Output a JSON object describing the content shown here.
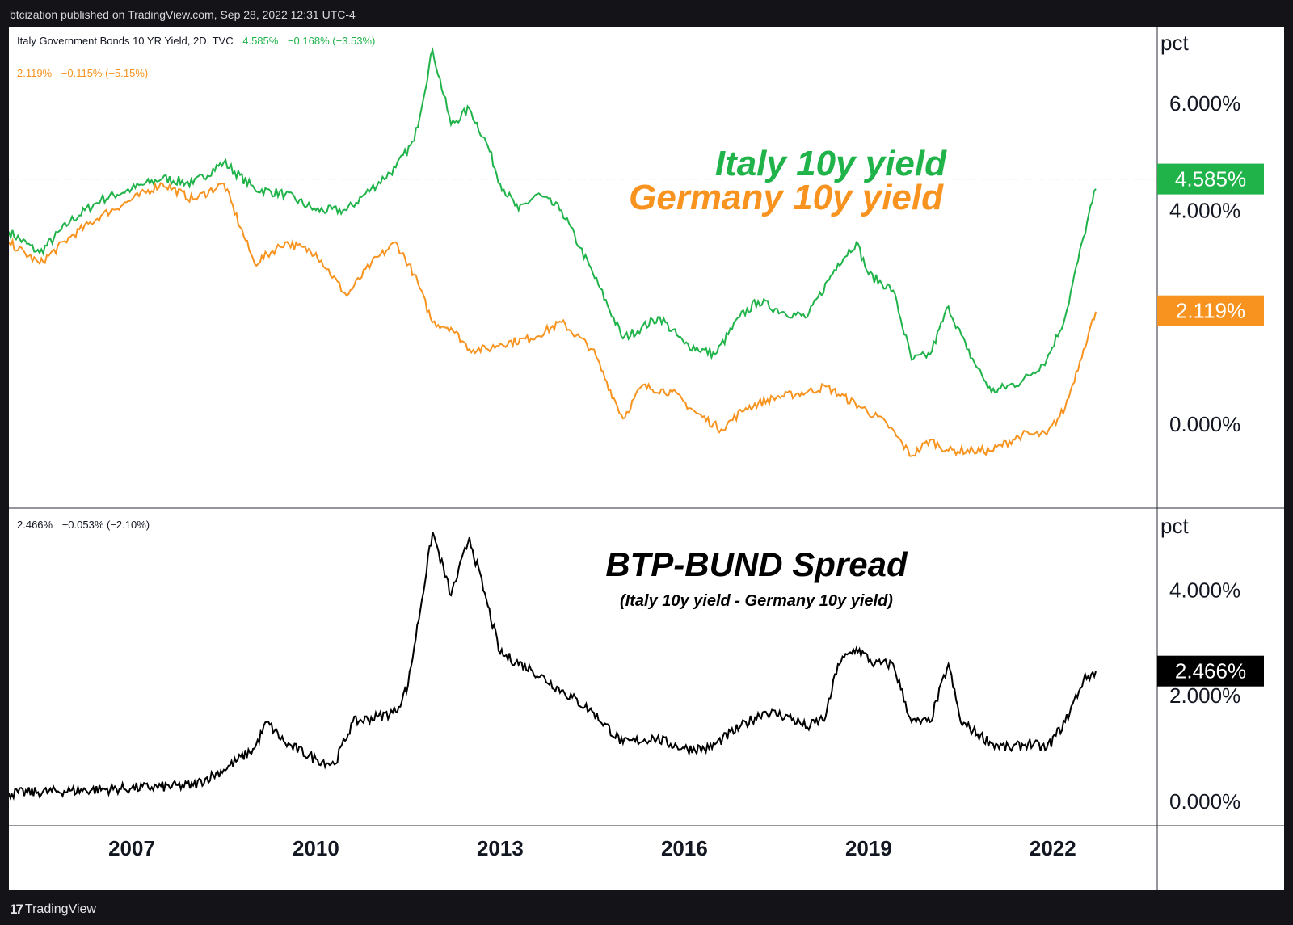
{
  "header": {
    "publisher_text": "btcization published on TradingView.com, Sep 28, 2022 12:31 UTC-4"
  },
  "footer": {
    "brand": "TradingView"
  },
  "colors": {
    "italy": "#1fb34a",
    "germany": "#f7931e",
    "spread": "#000000",
    "background": "#ffffff",
    "frame": "#141418"
  },
  "chart_data": [
    {
      "type": "line",
      "legend": {
        "symbol": "Italy Government Bonds 10 YR Yield, 2D, TVC",
        "italy_value": "4.585%",
        "italy_change": "−0.168% (−3.53%)",
        "germany_value": "2.119%",
        "germany_change": "−0.115% (−5.15%)"
      },
      "annotations": {
        "italy": "Italy 10y yield",
        "germany": "Germany 10y yield"
      },
      "y_unit": "pct",
      "y_ticks": [
        "6.000%",
        "4.000%",
        "0.000%"
      ],
      "y_tick_values": [
        6,
        4,
        0
      ],
      "ylim": [
        -1.5,
        7.3
      ],
      "xlim": [
        2005.0,
        2023.7
      ],
      "price_labels": {
        "italy": "4.585%",
        "germany": "2.119%"
      },
      "last_values": {
        "italy": 4.585,
        "germany": 2.119
      },
      "series": [
        {
          "name": "Italy 10y yield",
          "points": [
            [
              2005.0,
              3.6
            ],
            [
              2005.5,
              3.2
            ],
            [
              2006.0,
              3.8
            ],
            [
              2006.5,
              4.2
            ],
            [
              2007.0,
              4.4
            ],
            [
              2007.5,
              4.6
            ],
            [
              2008.0,
              4.5
            ],
            [
              2008.5,
              4.9
            ],
            [
              2009.0,
              4.4
            ],
            [
              2009.5,
              4.3
            ],
            [
              2010.0,
              4.0
            ],
            [
              2010.5,
              4.0
            ],
            [
              2010.9,
              4.4
            ],
            [
              2011.3,
              4.8
            ],
            [
              2011.6,
              5.3
            ],
            [
              2011.9,
              7.0
            ],
            [
              2012.2,
              5.6
            ],
            [
              2012.5,
              5.9
            ],
            [
              2012.8,
              5.2
            ],
            [
              2013.0,
              4.5
            ],
            [
              2013.3,
              4.0
            ],
            [
              2013.6,
              4.3
            ],
            [
              2014.0,
              4.0
            ],
            [
              2014.3,
              3.3
            ],
            [
              2014.6,
              2.6
            ],
            [
              2015.0,
              1.6
            ],
            [
              2015.3,
              1.8
            ],
            [
              2015.6,
              2.0
            ],
            [
              2016.0,
              1.5
            ],
            [
              2016.5,
              1.3
            ],
            [
              2016.9,
              2.0
            ],
            [
              2017.2,
              2.3
            ],
            [
              2017.6,
              2.1
            ],
            [
              2018.0,
              2.0
            ],
            [
              2018.5,
              3.0
            ],
            [
              2018.8,
              3.4
            ],
            [
              2019.0,
              2.8
            ],
            [
              2019.4,
              2.5
            ],
            [
              2019.7,
              1.2
            ],
            [
              2020.0,
              1.3
            ],
            [
              2020.3,
              2.2
            ],
            [
              2020.6,
              1.4
            ],
            [
              2021.0,
              0.6
            ],
            [
              2021.5,
              0.8
            ],
            [
              2021.9,
              1.2
            ],
            [
              2022.2,
              2.0
            ],
            [
              2022.5,
              3.5
            ],
            [
              2022.7,
              4.4
            ]
          ]
        },
        {
          "name": "Germany 10y yield",
          "points": [
            [
              2005.0,
              3.4
            ],
            [
              2005.5,
              3.0
            ],
            [
              2006.0,
              3.5
            ],
            [
              2006.5,
              3.9
            ],
            [
              2007.0,
              4.2
            ],
            [
              2007.5,
              4.5
            ],
            [
              2008.0,
              4.2
            ],
            [
              2008.5,
              4.5
            ],
            [
              2009.0,
              3.0
            ],
            [
              2009.5,
              3.4
            ],
            [
              2010.0,
              3.2
            ],
            [
              2010.5,
              2.4
            ],
            [
              2010.9,
              3.0
            ],
            [
              2011.3,
              3.4
            ],
            [
              2011.6,
              2.8
            ],
            [
              2011.9,
              1.9
            ],
            [
              2012.2,
              1.8
            ],
            [
              2012.5,
              1.4
            ],
            [
              2012.8,
              1.4
            ],
            [
              2013.0,
              1.5
            ],
            [
              2013.5,
              1.6
            ],
            [
              2014.0,
              1.9
            ],
            [
              2014.5,
              1.4
            ],
            [
              2015.0,
              0.1
            ],
            [
              2015.3,
              0.7
            ],
            [
              2015.8,
              0.6
            ],
            [
              2016.2,
              0.2
            ],
            [
              2016.6,
              -0.1
            ],
            [
              2017.0,
              0.3
            ],
            [
              2017.5,
              0.5
            ],
            [
              2018.0,
              0.6
            ],
            [
              2018.3,
              0.7
            ],
            [
              2018.9,
              0.3
            ],
            [
              2019.3,
              0.0
            ],
            [
              2019.7,
              -0.6
            ],
            [
              2020.0,
              -0.3
            ],
            [
              2020.3,
              -0.5
            ],
            [
              2020.7,
              -0.5
            ],
            [
              2021.0,
              -0.5
            ],
            [
              2021.5,
              -0.2
            ],
            [
              2021.9,
              -0.2
            ],
            [
              2022.2,
              0.3
            ],
            [
              2022.5,
              1.4
            ],
            [
              2022.7,
              2.1
            ]
          ]
        }
      ]
    },
    {
      "type": "line",
      "legend": {
        "value": "2.466%",
        "change": "−0.053% (−2.10%)"
      },
      "title": "BTP-BUND Spread",
      "subtitle": "(Italy 10y yield - Germany 10y yield)",
      "y_unit": "pct",
      "y_ticks": [
        "4.000%",
        "2.000%",
        "0.000%"
      ],
      "y_tick_values": [
        4,
        2,
        0
      ],
      "ylim": [
        -0.4,
        5.4
      ],
      "xlim": [
        2005.0,
        2023.7
      ],
      "price_label": "2.466%",
      "last_value": 2.466,
      "series": [
        {
          "name": "BTP-BUND Spread",
          "points": [
            [
              2005.0,
              0.15
            ],
            [
              2006.0,
              0.2
            ],
            [
              2007.0,
              0.25
            ],
            [
              2008.0,
              0.3
            ],
            [
              2008.5,
              0.6
            ],
            [
              2009.0,
              1.0
            ],
            [
              2009.2,
              1.5
            ],
            [
              2009.5,
              1.1
            ],
            [
              2010.0,
              0.8
            ],
            [
              2010.3,
              0.7
            ],
            [
              2010.6,
              1.5
            ],
            [
              2011.0,
              1.6
            ],
            [
              2011.3,
              1.7
            ],
            [
              2011.5,
              2.2
            ],
            [
              2011.9,
              5.1
            ],
            [
              2012.2,
              3.9
            ],
            [
              2012.5,
              5.0
            ],
            [
              2012.8,
              3.7
            ],
            [
              2013.0,
              2.8
            ],
            [
              2013.5,
              2.5
            ],
            [
              2014.0,
              2.1
            ],
            [
              2014.5,
              1.7
            ],
            [
              2015.0,
              1.1
            ],
            [
              2015.5,
              1.2
            ],
            [
              2016.0,
              1.0
            ],
            [
              2016.4,
              1.0
            ],
            [
              2016.9,
              1.4
            ],
            [
              2017.3,
              1.7
            ],
            [
              2017.7,
              1.6
            ],
            [
              2018.0,
              1.4
            ],
            [
              2018.3,
              1.6
            ],
            [
              2018.5,
              2.6
            ],
            [
              2018.8,
              2.9
            ],
            [
              2019.1,
              2.6
            ],
            [
              2019.4,
              2.6
            ],
            [
              2019.7,
              1.5
            ],
            [
              2020.0,
              1.5
            ],
            [
              2020.3,
              2.6
            ],
            [
              2020.5,
              1.5
            ],
            [
              2021.0,
              1.1
            ],
            [
              2021.3,
              1.0
            ],
            [
              2021.6,
              1.1
            ],
            [
              2021.9,
              1.0
            ],
            [
              2022.2,
              1.5
            ],
            [
              2022.5,
              2.3
            ],
            [
              2022.7,
              2.46
            ]
          ]
        }
      ]
    }
  ],
  "x_axis": {
    "ticks": [
      "2007",
      "2010",
      "2013",
      "2016",
      "2019",
      "2022"
    ],
    "tick_values": [
      2007,
      2010,
      2013,
      2016,
      2019,
      2022
    ]
  }
}
